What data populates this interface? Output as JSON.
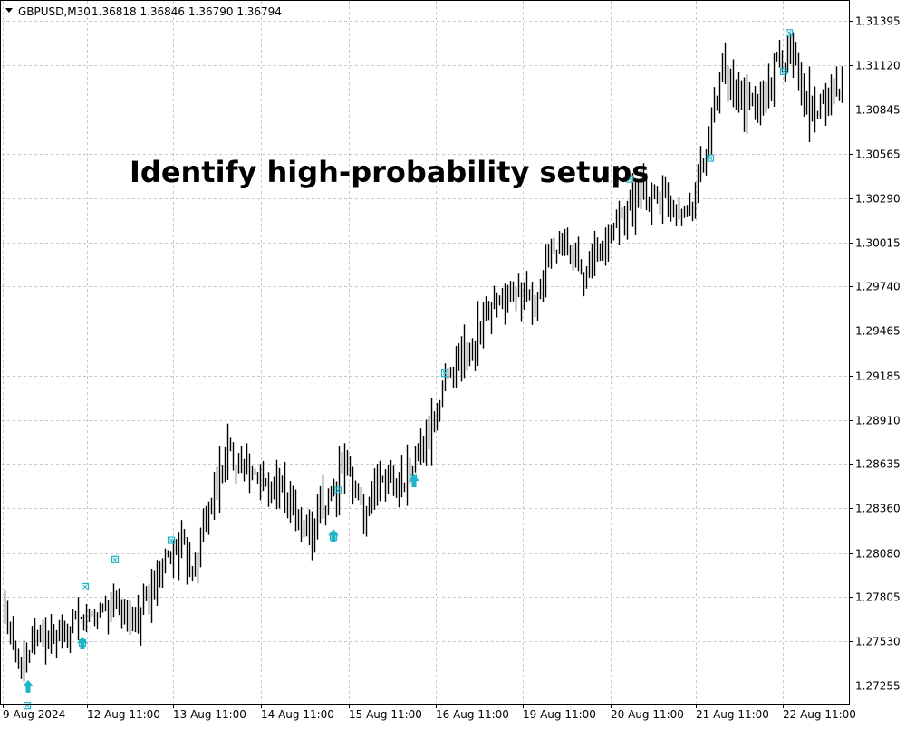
{
  "header": {
    "symbol_tf": "GBPUSD,M30",
    "ohlc": "1.36818 1.36846 1.36790 1.36794"
  },
  "overlay": {
    "text": "Identify high-probability setups"
  },
  "colors": {
    "candle": "#000000",
    "grid": "#c8c8c8",
    "signal": "#1fb5c9",
    "background": "#ffffff"
  },
  "chart_data": {
    "type": "line",
    "title": "",
    "xlabel": "",
    "ylabel": "",
    "ylim": [
      1.2714,
      1.3155
    ],
    "grid": true,
    "legend": "none",
    "price_ticks": [
      "1.31395",
      "1.31120",
      "1.30845",
      "1.30565",
      "1.30290",
      "1.30015",
      "1.29740",
      "1.29465",
      "1.29185",
      "1.28910",
      "1.28635",
      "1.28360",
      "1.28080",
      "1.27805",
      "1.27530",
      "1.27255"
    ],
    "time_ticks": [
      "9 Aug 2024",
      "12 Aug 11:00",
      "13 Aug 11:00",
      "14 Aug 11:00",
      "15 Aug 11:00",
      "16 Aug 11:00",
      "19 Aug 11:00",
      "20 Aug 11:00",
      "21 Aug 11:00",
      "22 Aug 11:00"
    ],
    "series": [
      {
        "x": [
          "9 Aug 2024",
          "9 Aug",
          "12 Aug",
          "12 Aug",
          "12 Aug",
          "12 Aug 11:00",
          "12 Aug",
          "12 Aug",
          "13 Aug",
          "13 Aug",
          "13 Aug 11:00",
          "13 Aug",
          "13 Aug",
          "13 Aug",
          "14 Aug",
          "14 Aug",
          "14 Aug 11:00",
          "14 Aug",
          "14 Aug",
          "15 Aug",
          "15 Aug",
          "15 Aug",
          "15 Aug 11:00",
          "15 Aug",
          "15 Aug",
          "16 Aug",
          "16 Aug",
          "16 Aug",
          "16 Aug 11:00",
          "16 Aug",
          "16 Aug",
          "19 Aug",
          "19 Aug",
          "19 Aug 11:00",
          "19 Aug",
          "19 Aug",
          "20 Aug",
          "20 Aug",
          "20 Aug 11:00",
          "20 Aug",
          "20 Aug",
          "21 Aug",
          "21 Aug",
          "21 Aug 11:00",
          "21 Aug",
          "21 Aug",
          "22 Aug",
          "22 Aug",
          "22 Aug 11:00",
          "22 Aug"
        ],
        "values": [
          1.277,
          1.274,
          1.2758,
          1.2753,
          1.276,
          1.277,
          1.2775,
          1.2768,
          1.2772,
          1.2788,
          1.2815,
          1.28,
          1.284,
          1.287,
          1.2866,
          1.2848,
          1.2852,
          1.2828,
          1.2822,
          1.2846,
          1.2862,
          1.2832,
          1.2856,
          1.2852,
          1.2866,
          1.2885,
          1.2925,
          1.293,
          1.2955,
          1.2963,
          1.2972,
          1.296,
          1.2998,
          1.2995,
          1.2985,
          1.2998,
          1.302,
          1.303,
          1.3032,
          1.3028,
          1.3022,
          1.3055,
          1.3105,
          1.309,
          1.3085,
          1.3108,
          1.3125,
          1.3085,
          1.309,
          1.3102
        ]
      }
    ],
    "signals": {
      "up_arrows": [
        {
          "x": "9 Aug",
          "y": 1.2725
        },
        {
          "x": "12 Aug",
          "y": 1.2752
        },
        {
          "x": "14 Aug",
          "y": 1.2819
        },
        {
          "x": "15 Aug",
          "y": 1.2853
        }
      ],
      "boxes": [
        {
          "x": "9 Aug",
          "y": 1.2713
        },
        {
          "x": "12 Aug",
          "y": 1.2752
        },
        {
          "x": "12 Aug",
          "y": 1.2787
        },
        {
          "x": "12 Aug",
          "y": 1.2804
        },
        {
          "x": "13 Aug",
          "y": 1.2816
        },
        {
          "x": "14 Aug",
          "y": 1.2818
        },
        {
          "x": "14 Aug",
          "y": 1.2847
        },
        {
          "x": "15 Aug",
          "y": 1.2855
        },
        {
          "x": "16 Aug",
          "y": 1.292
        },
        {
          "x": "20 Aug",
          "y": 1.3041
        },
        {
          "x": "21 Aug",
          "y": 1.3054
        },
        {
          "x": "22 Aug",
          "y": 1.3108
        },
        {
          "x": "22 Aug",
          "y": 1.3132
        }
      ]
    }
  }
}
